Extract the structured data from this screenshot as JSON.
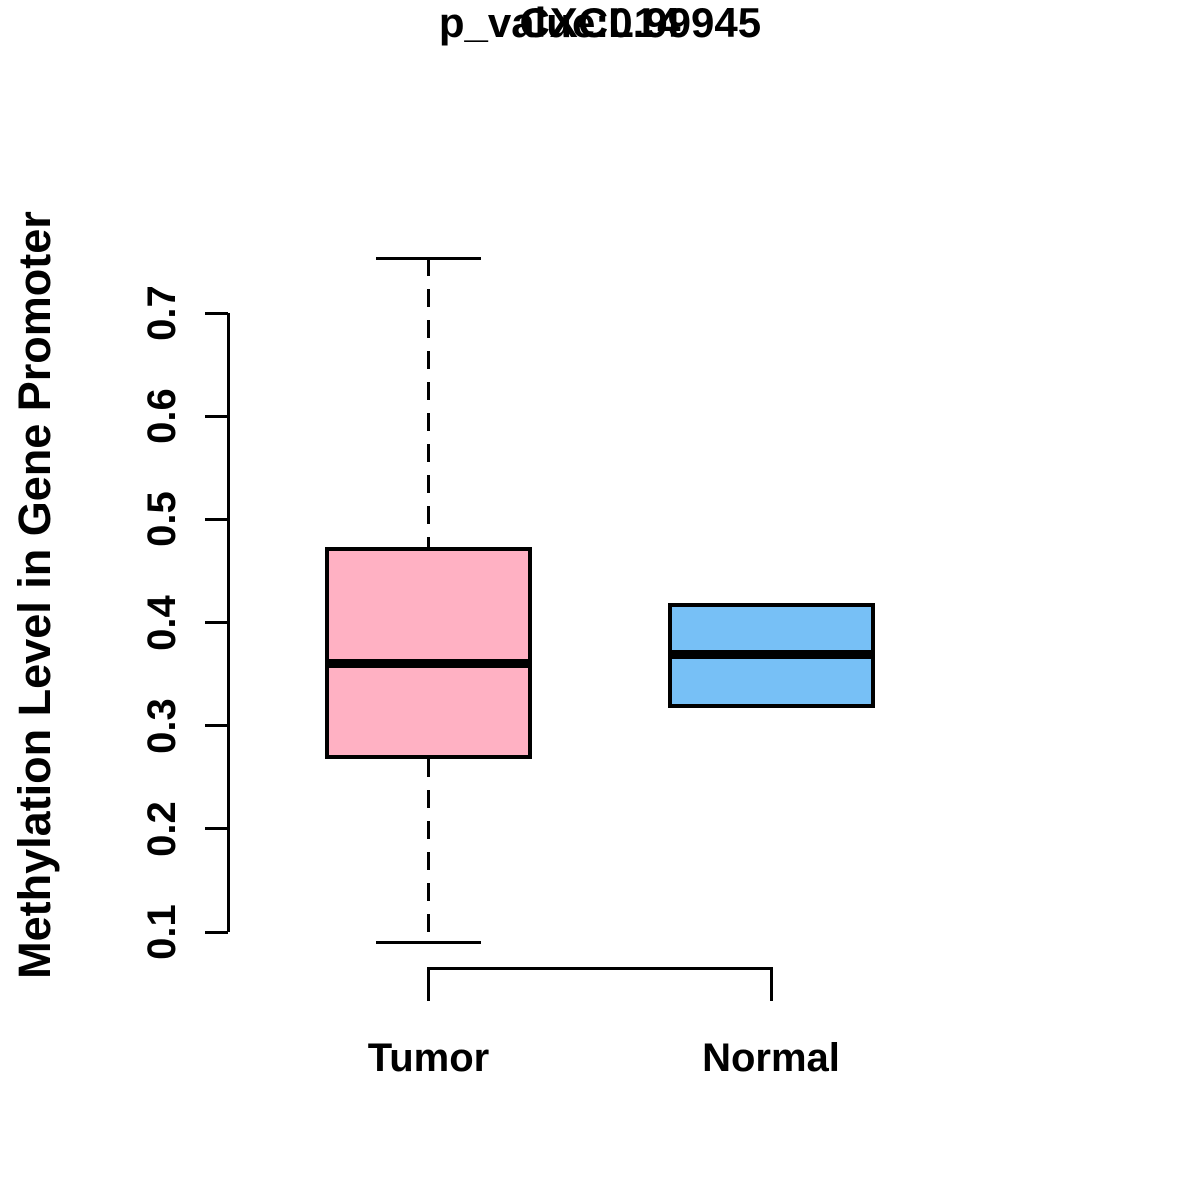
{
  "chart_data": {
    "type": "boxplot",
    "title": "CXCL14",
    "subtitle": "p_value:0.99945",
    "ylabel": "Methylation Level in Gene Promoter",
    "categories": [
      "Tumor",
      "Normal"
    ],
    "ytick_labels": [
      "0.1",
      "0.2",
      "0.3",
      "0.4",
      "0.5",
      "0.6",
      "0.7"
    ],
    "yaxis_range": [
      0.1,
      0.7
    ],
    "grid": "off",
    "legend": "none",
    "series": [
      {
        "name": "Tumor",
        "fill_color": "#FFB1C3",
        "whisker_low": 0.09,
        "q1": 0.268,
        "median": 0.36,
        "q3": 0.473,
        "whisker_high": 0.753,
        "has_whiskers": true
      },
      {
        "name": "Normal",
        "fill_color": "#77C0F6",
        "whisker_low": 0.317,
        "q1": 0.317,
        "median": 0.369,
        "q3": 0.419,
        "whisker_high": 0.419,
        "has_whiskers": false
      }
    ],
    "line_color": "#000000",
    "background_color": "#FFFFFF"
  }
}
